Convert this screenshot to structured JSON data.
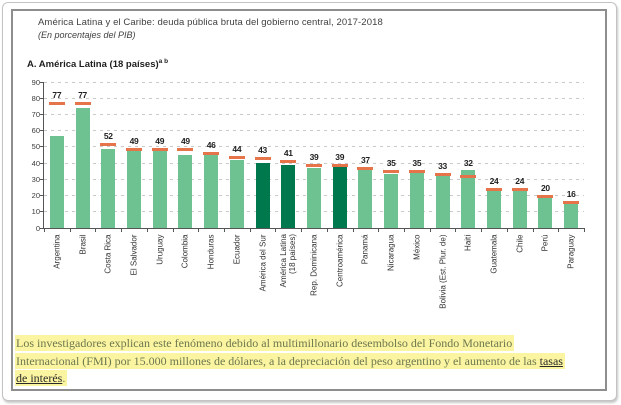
{
  "figure": {
    "title": "América Latina y el Caribe: deuda pública bruta del gobierno central, 2017-2018",
    "subtitle": "(En porcentajes del PIB)",
    "panel_title": "A. América Latina (18 países)",
    "panel_superscript": "a b"
  },
  "chart_data": {
    "type": "bar",
    "title": "A. América Latina (18 países)",
    "xlabel": "",
    "ylabel": "",
    "ylim": [
      0,
      90
    ],
    "yticks": [
      0,
      10,
      20,
      30,
      40,
      50,
      60,
      70,
      80,
      90
    ],
    "grid": "horizontal dashed",
    "legend": "none",
    "categories": [
      "Argentina",
      "Brasil",
      "Costa Rica",
      "El Salvador",
      "Uruguay",
      "Colombia",
      "Honduras",
      "Ecuador",
      "América del Sur",
      "América Latina\n(18 países)",
      "Rep. Dominicana",
      "Centroamérica",
      "Panamá",
      "Nicaragua",
      "México",
      "Bolivia (Est. Plur. de)",
      "Haití",
      "Guatemala",
      "Chile",
      "Perú",
      "Paraguay"
    ],
    "data_labels": [
      77,
      77,
      52,
      49,
      49,
      49,
      46,
      44,
      43,
      41,
      39,
      39,
      37,
      35,
      35,
      33,
      32,
      24,
      24,
      20,
      16
    ],
    "series": [
      {
        "name": "barra (nivel)",
        "values": [
          57,
          74,
          49,
          48,
          48,
          45,
          45,
          42,
          40,
          39,
          37,
          38,
          36,
          33,
          34,
          34,
          36,
          23,
          23,
          20,
          15
        ]
      },
      {
        "name": "marca naranja (valor etiquetado)",
        "values": [
          77,
          77,
          52,
          49,
          49,
          49,
          46,
          44,
          43,
          41,
          39,
          39,
          37,
          35,
          35,
          33,
          32,
          24,
          24,
          20,
          16
        ]
      }
    ],
    "aggregate_indices": [
      8,
      9,
      11
    ],
    "colors": {
      "bar": "#6ec191",
      "bar_aggregate": "#00784e",
      "marker": "#e6744b",
      "value_label": "#1f1f1f",
      "axis": "#555555",
      "grid": "#c9c9c9",
      "tick_label": "#3a3a3a"
    }
  },
  "caption": {
    "line1": "Los investigadores explican este fenómeno debido al multimillonario desembolso del Fondo Monetario",
    "line2_pre": "Internacional (FMI) por 15.000 millones de dólares, a la depreciación del peso argentino y el aumento de las ",
    "line2_link": "tasas",
    "line3_link": "de interés",
    "line3_post": ".",
    "highlight_color": "#fbf4a1",
    "text_color": "#6d784f",
    "link_color": "#2a2a2a"
  }
}
